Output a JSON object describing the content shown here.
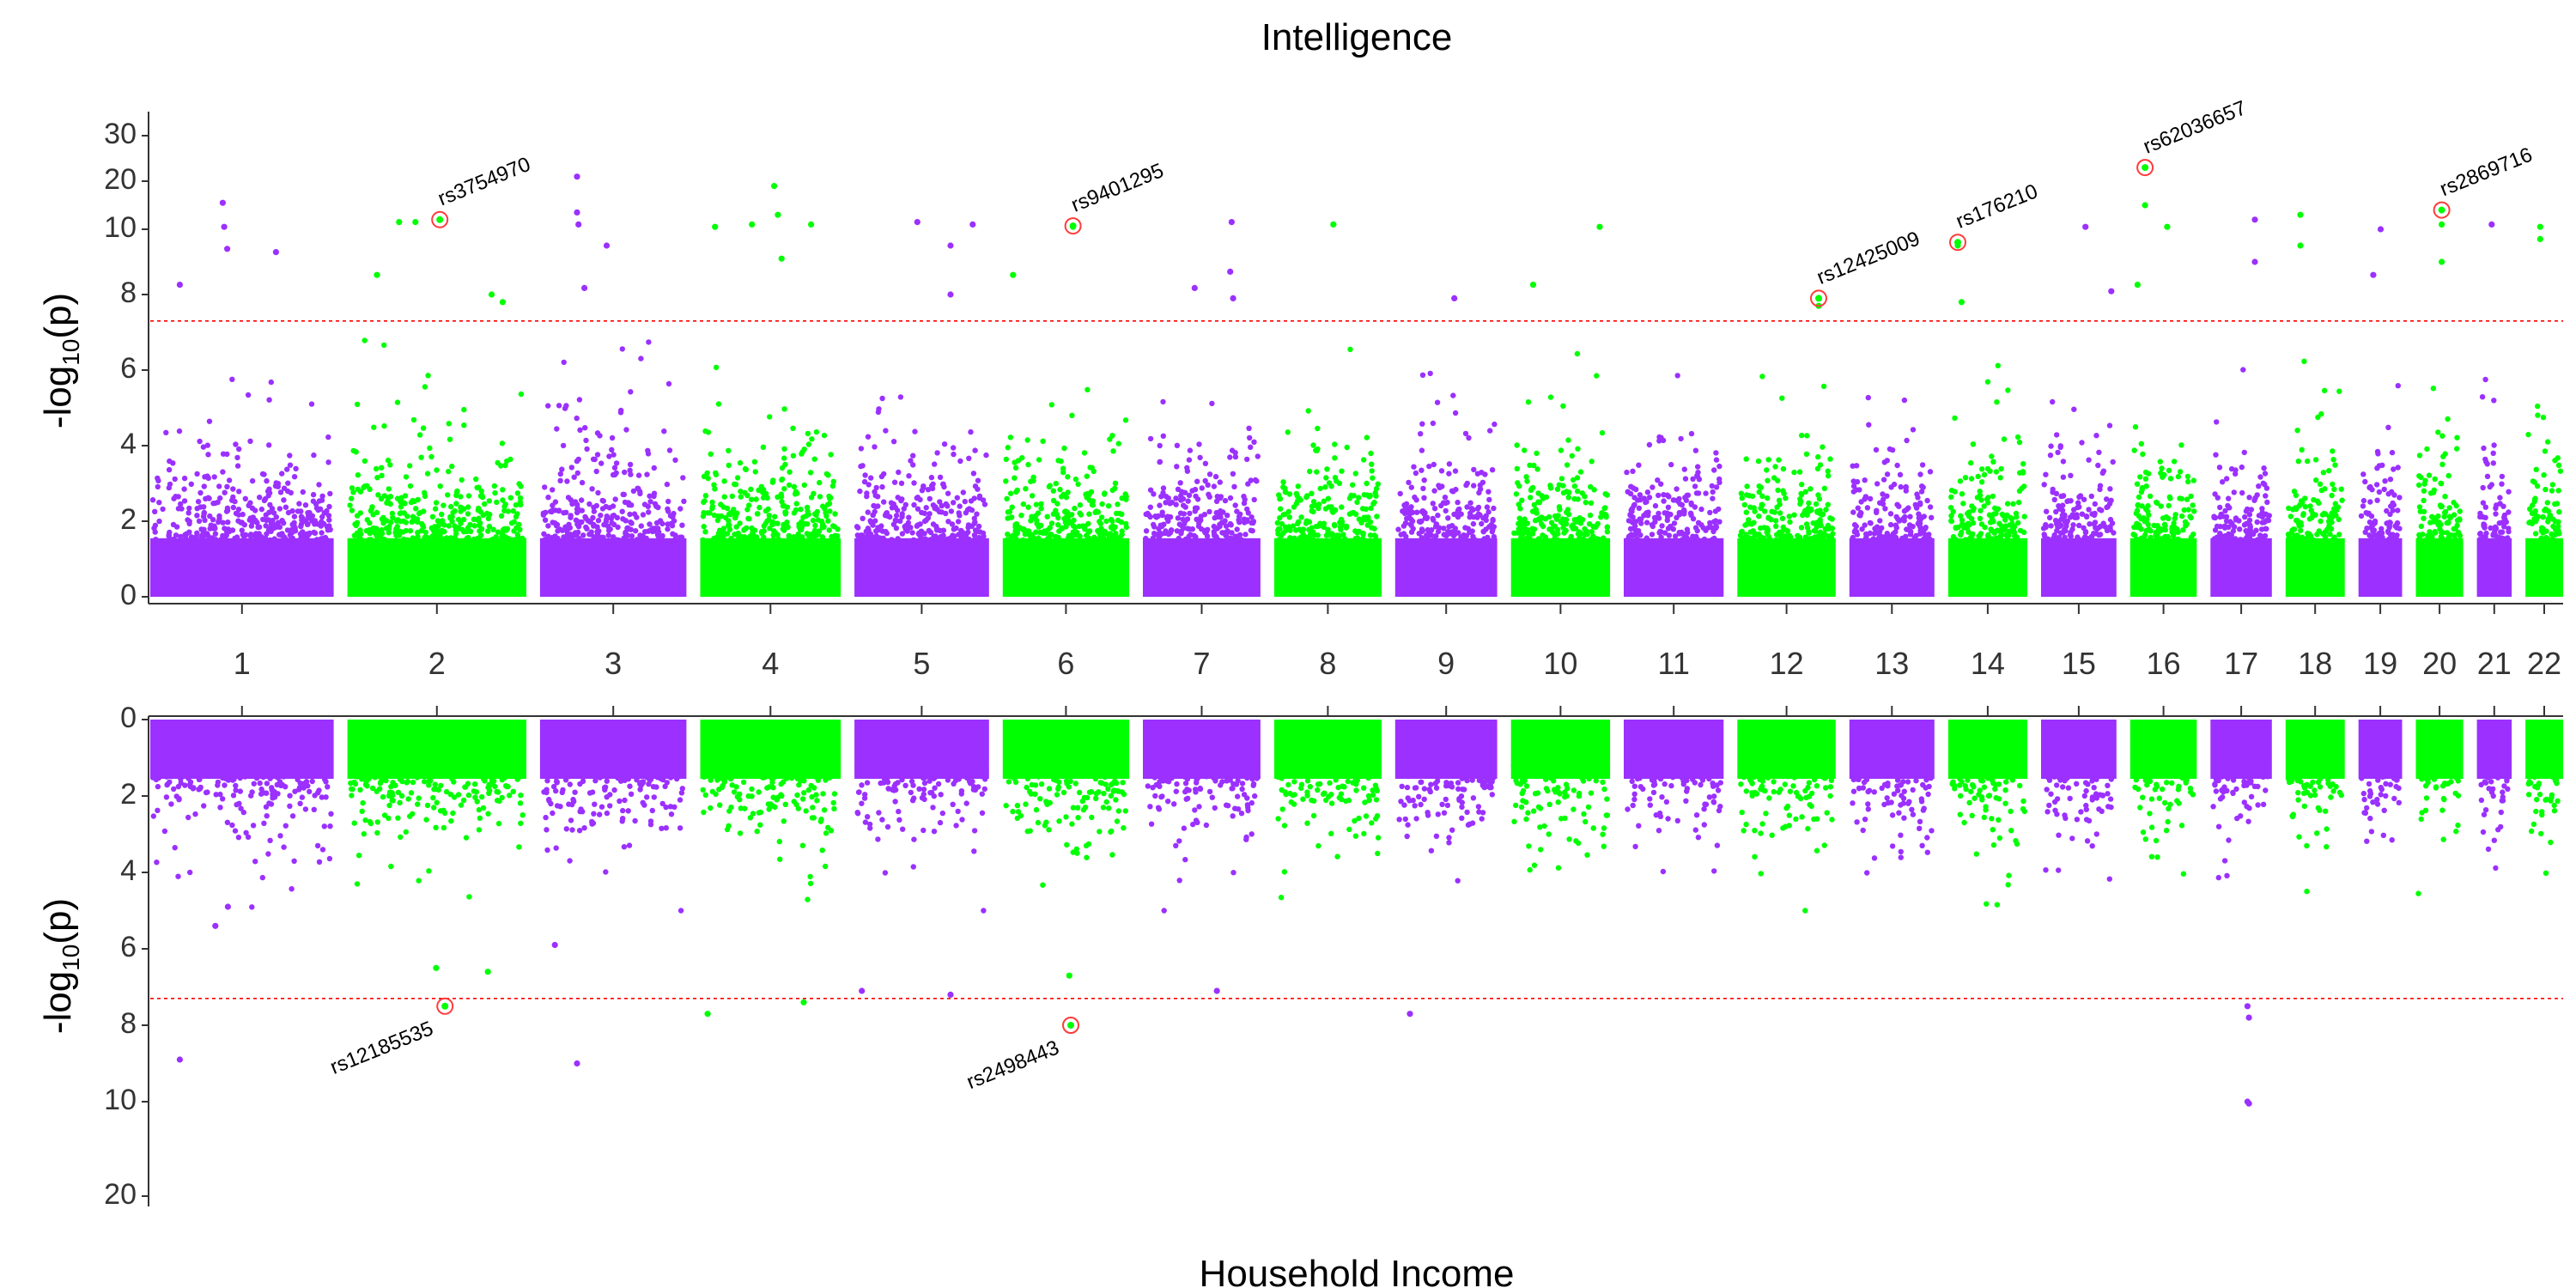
{
  "chart_data": {
    "type": "scatter",
    "subtype": "miami-plot",
    "title": "Intelligence",
    "bottom_title": "Household Income",
    "ylabel_top": "-log10(p)",
    "ylabel_bottom": "-log10(p)",
    "threshold": 7.3,
    "threshold_color": "#ff0000",
    "colors": {
      "odd_chromosome": "#9b30ff",
      "even_chromosome": "#00ff00",
      "highlight_ring": "#ff3b3b"
    },
    "top_y_ticks": [
      "0",
      "2",
      "4",
      "6",
      "8",
      "10",
      "20",
      "30"
    ],
    "bottom_y_ticks": [
      "0",
      "2",
      "4",
      "6",
      "8",
      "10",
      "20"
    ],
    "chromosomes": [
      {
        "label": "1",
        "start": 0,
        "end": 248
      },
      {
        "label": "2",
        "start": 248,
        "end": 490
      },
      {
        "label": "3",
        "start": 490,
        "end": 688
      },
      {
        "label": "4",
        "start": 688,
        "end": 878
      },
      {
        "label": "5",
        "start": 878,
        "end": 1060
      },
      {
        "label": "6",
        "start": 1060,
        "end": 1231
      },
      {
        "label": "7",
        "start": 1231,
        "end": 1390
      },
      {
        "label": "8",
        "start": 1390,
        "end": 1535
      },
      {
        "label": "9",
        "start": 1535,
        "end": 1673
      },
      {
        "label": "10",
        "start": 1673,
        "end": 1807
      },
      {
        "label": "11",
        "start": 1807,
        "end": 1942
      },
      {
        "label": "12",
        "start": 1942,
        "end": 2075
      },
      {
        "label": "13",
        "start": 2075,
        "end": 2190
      },
      {
        "label": "14",
        "start": 2190,
        "end": 2297
      },
      {
        "label": "15",
        "start": 2297,
        "end": 2399
      },
      {
        "label": "16",
        "start": 2399,
        "end": 2489
      },
      {
        "label": "17",
        "start": 2489,
        "end": 2572
      },
      {
        "label": "18",
        "start": 2572,
        "end": 2652
      },
      {
        "label": "19",
        "start": 2652,
        "end": 2711
      },
      {
        "label": "20",
        "start": 2711,
        "end": 2775
      },
      {
        "label": "21",
        "start": 2775,
        "end": 2822
      },
      {
        "label": "22",
        "start": 2822,
        "end": 2873
      }
    ],
    "top_significant": [
      {
        "chr": 1,
        "pos": 98,
        "p": 15.5
      },
      {
        "chr": 1,
        "pos": 100,
        "p": 10.5
      },
      {
        "chr": 1,
        "pos": 104,
        "p": 9.4
      },
      {
        "chr": 1,
        "pos": 170,
        "p": 9.3
      },
      {
        "chr": 1,
        "pos": 40,
        "p": 8.3
      },
      {
        "chr": 2,
        "pos": 70,
        "p": 11.5
      },
      {
        "chr": 2,
        "pos": 92,
        "p": 11.5
      },
      {
        "chr": 2,
        "pos": 40,
        "p": 8.6
      },
      {
        "chr": 2,
        "pos": 195,
        "p": 8.0
      },
      {
        "chr": 2,
        "pos": 210,
        "p": 7.8
      },
      {
        "chr": 3,
        "pos": 50,
        "p": 21.0
      },
      {
        "chr": 3,
        "pos": 50,
        "p": 13.5
      },
      {
        "chr": 3,
        "pos": 52,
        "p": 11.0
      },
      {
        "chr": 3,
        "pos": 90,
        "p": 9.5
      },
      {
        "chr": 3,
        "pos": 60,
        "p": 8.2
      },
      {
        "chr": 4,
        "pos": 20,
        "p": 10.5
      },
      {
        "chr": 4,
        "pos": 70,
        "p": 11.0
      },
      {
        "chr": 4,
        "pos": 100,
        "p": 19.0
      },
      {
        "chr": 4,
        "pos": 105,
        "p": 13.0
      },
      {
        "chr": 4,
        "pos": 110,
        "p": 9.1
      },
      {
        "chr": 4,
        "pos": 150,
        "p": 11.0
      },
      {
        "chr": 5,
        "pos": 85,
        "p": 11.5
      },
      {
        "chr": 5,
        "pos": 130,
        "p": 9.5
      },
      {
        "chr": 5,
        "pos": 160,
        "p": 11.0
      },
      {
        "chr": 5,
        "pos": 130,
        "p": 8.0
      },
      {
        "chr": 6,
        "pos": 14,
        "p": 8.6
      },
      {
        "chr": 6,
        "pos": 95,
        "p": 10.5
      },
      {
        "chr": 7,
        "pos": 70,
        "p": 8.2
      },
      {
        "chr": 7,
        "pos": 120,
        "p": 11.5
      },
      {
        "chr": 7,
        "pos": 118,
        "p": 8.7
      },
      {
        "chr": 7,
        "pos": 122,
        "p": 7.9
      },
      {
        "chr": 8,
        "pos": 80,
        "p": 11.0
      },
      {
        "chr": 9,
        "pos": 80,
        "p": 7.9
      },
      {
        "chr": 10,
        "pos": 30,
        "p": 8.3
      },
      {
        "chr": 10,
        "pos": 120,
        "p": 10.5
      },
      {
        "chr": 12,
        "pos": 110,
        "p": 7.7
      },
      {
        "chr": 14,
        "pos": 13,
        "p": 9.5
      },
      {
        "chr": 14,
        "pos": 18,
        "p": 7.8
      },
      {
        "chr": 15,
        "pos": 60,
        "p": 10.5
      },
      {
        "chr": 15,
        "pos": 95,
        "p": 8.1
      },
      {
        "chr": 16,
        "pos": 10,
        "p": 8.3
      },
      {
        "chr": 16,
        "pos": 20,
        "p": 15.0
      },
      {
        "chr": 16,
        "pos": 50,
        "p": 10.5
      },
      {
        "chr": 17,
        "pos": 60,
        "p": 9.0
      },
      {
        "chr": 17,
        "pos": 60,
        "p": 12.0
      },
      {
        "chr": 18,
        "pos": 20,
        "p": 13.0
      },
      {
        "chr": 18,
        "pos": 20,
        "p": 9.5
      },
      {
        "chr": 19,
        "pos": 30,
        "p": 10.0
      },
      {
        "chr": 19,
        "pos": 20,
        "p": 8.6
      },
      {
        "chr": 20,
        "pos": 35,
        "p": 11.0
      },
      {
        "chr": 20,
        "pos": 35,
        "p": 9.0
      },
      {
        "chr": 21,
        "pos": 20,
        "p": 11.0
      },
      {
        "chr": 22,
        "pos": 20,
        "p": 10.5
      },
      {
        "chr": 22,
        "pos": 20,
        "p": 9.7
      }
    ],
    "bottom_significant": [
      {
        "chr": 1,
        "pos": 40,
        "p": 8.9
      },
      {
        "chr": 1,
        "pos": 88,
        "p": 5.4
      },
      {
        "chr": 1,
        "pos": 105,
        "p": 4.9
      },
      {
        "chr": 2,
        "pos": 120,
        "p": 6.5
      },
      {
        "chr": 2,
        "pos": 190,
        "p": 6.6
      },
      {
        "chr": 3,
        "pos": 20,
        "p": 5.9
      },
      {
        "chr": 3,
        "pos": 50,
        "p": 9.0
      },
      {
        "chr": 4,
        "pos": 10,
        "p": 7.7
      },
      {
        "chr": 4,
        "pos": 140,
        "p": 7.4
      },
      {
        "chr": 5,
        "pos": 10,
        "p": 7.1
      },
      {
        "chr": 5,
        "pos": 130,
        "p": 7.2
      },
      {
        "chr": 6,
        "pos": 90,
        "p": 6.7
      },
      {
        "chr": 7,
        "pos": 100,
        "p": 7.1
      },
      {
        "chr": 9,
        "pos": 20,
        "p": 7.7
      },
      {
        "chr": 17,
        "pos": 50,
        "p": 7.5
      },
      {
        "chr": 17,
        "pos": 52,
        "p": 7.8
      },
      {
        "chr": 17,
        "pos": 50,
        "p": 10.0
      },
      {
        "chr": 17,
        "pos": 52,
        "p": 10.2
      }
    ],
    "top_annotations": [
      {
        "label": "rs3754970",
        "chr": 2,
        "pos": 125,
        "p": 12.0
      },
      {
        "label": "rs9401295",
        "chr": 6,
        "pos": 95,
        "p": 10.7
      },
      {
        "label": "rs12425009",
        "chr": 12,
        "pos": 110,
        "p": 7.9
      },
      {
        "label": "rs176210",
        "chr": 14,
        "pos": 13,
        "p": 9.6
      },
      {
        "label": "rs62036657",
        "chr": 16,
        "pos": 20,
        "p": 23.0
      },
      {
        "label": "rs2869716",
        "chr": 20,
        "pos": 35,
        "p": 14.0
      }
    ],
    "bottom_annotations": [
      {
        "label": "rs12185535",
        "chr": 2,
        "pos": 132,
        "p": 7.5
      },
      {
        "label": "rs2498443",
        "chr": 6,
        "pos": 92,
        "p": 8.0
      }
    ]
  }
}
